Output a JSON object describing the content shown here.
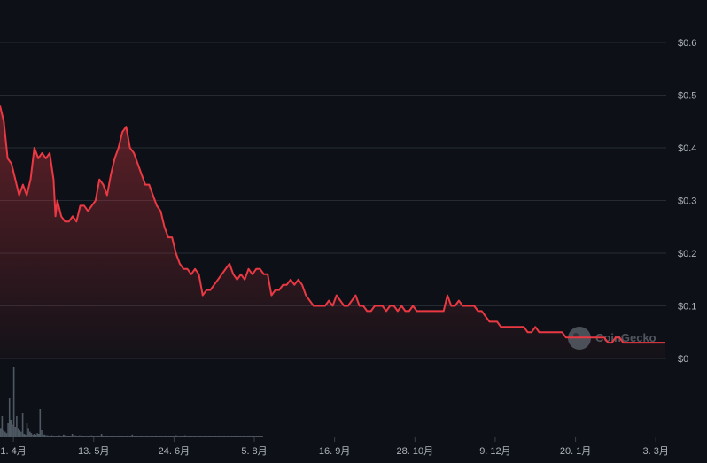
{
  "chart_data": {
    "type": "line",
    "title": "",
    "xlabel": "",
    "ylabel": "",
    "ylim": [
      0,
      0.6
    ],
    "grid": true,
    "y_ticks": [
      "$0",
      "$0.1",
      "$0.2",
      "$0.3",
      "$0.4",
      "$0.5",
      "$0.6"
    ],
    "y_tick_values": [
      0,
      0.1,
      0.2,
      0.3,
      0.4,
      0.5,
      0.6
    ],
    "x_ticks": [
      "1. 4月",
      "13. 5月",
      "24. 6月",
      "5. 8月",
      "16. 9月",
      "28. 10月",
      "9. 12月",
      "20. 1月",
      "3. 3月"
    ],
    "x_tick_day_index": [
      0,
      42,
      84,
      126,
      168,
      210,
      252,
      294,
      336
    ],
    "colors": {
      "line": "#ea3943",
      "volume": "#5a6570",
      "grid": "#262b33",
      "background": "#0d1117"
    },
    "watermark": "CoinGecko",
    "series": [
      {
        "points": [
          [
            -7,
            0.48
          ],
          [
            -5,
            0.45
          ],
          [
            -3,
            0.38
          ],
          [
            -1,
            0.37
          ],
          [
            1,
            0.34
          ],
          [
            3,
            0.31
          ],
          [
            5,
            0.33
          ],
          [
            7,
            0.31
          ],
          [
            9,
            0.34
          ],
          [
            11,
            0.4
          ],
          [
            13,
            0.38
          ],
          [
            15,
            0.39
          ],
          [
            17,
            0.38
          ],
          [
            19,
            0.39
          ],
          [
            21,
            0.34
          ],
          [
            22,
            0.27
          ],
          [
            23,
            0.3
          ],
          [
            25,
            0.27
          ],
          [
            27,
            0.26
          ],
          [
            29,
            0.26
          ],
          [
            31,
            0.27
          ],
          [
            33,
            0.26
          ],
          [
            35,
            0.29
          ],
          [
            37,
            0.29
          ],
          [
            39,
            0.28
          ],
          [
            41,
            0.29
          ],
          [
            43,
            0.3
          ],
          [
            45,
            0.34
          ],
          [
            47,
            0.33
          ],
          [
            49,
            0.31
          ],
          [
            51,
            0.35
          ],
          [
            53,
            0.38
          ],
          [
            55,
            0.4
          ],
          [
            57,
            0.43
          ],
          [
            59,
            0.44
          ],
          [
            61,
            0.4
          ],
          [
            63,
            0.39
          ],
          [
            65,
            0.37
          ],
          [
            67,
            0.35
          ],
          [
            69,
            0.33
          ],
          [
            71,
            0.33
          ],
          [
            73,
            0.31
          ],
          [
            75,
            0.29
          ],
          [
            77,
            0.28
          ],
          [
            79,
            0.25
          ],
          [
            81,
            0.23
          ],
          [
            83,
            0.23
          ],
          [
            85,
            0.2
          ],
          [
            87,
            0.18
          ],
          [
            89,
            0.17
          ],
          [
            91,
            0.17
          ],
          [
            93,
            0.16
          ],
          [
            95,
            0.17
          ],
          [
            97,
            0.16
          ],
          [
            99,
            0.12
          ],
          [
            101,
            0.13
          ],
          [
            103,
            0.13
          ],
          [
            105,
            0.14
          ],
          [
            107,
            0.15
          ],
          [
            109,
            0.16
          ],
          [
            111,
            0.17
          ],
          [
            113,
            0.18
          ],
          [
            115,
            0.16
          ],
          [
            117,
            0.15
          ],
          [
            119,
            0.16
          ],
          [
            121,
            0.15
          ],
          [
            123,
            0.17
          ],
          [
            125,
            0.16
          ],
          [
            127,
            0.17
          ],
          [
            129,
            0.17
          ],
          [
            131,
            0.16
          ],
          [
            133,
            0.16
          ],
          [
            135,
            0.12
          ],
          [
            137,
            0.13
          ],
          [
            139,
            0.13
          ],
          [
            141,
            0.14
          ],
          [
            143,
            0.14
          ],
          [
            145,
            0.15
          ],
          [
            147,
            0.14
          ],
          [
            149,
            0.15
          ],
          [
            151,
            0.14
          ],
          [
            153,
            0.12
          ],
          [
            155,
            0.11
          ],
          [
            157,
            0.1
          ],
          [
            159,
            0.1
          ],
          [
            161,
            0.1
          ],
          [
            163,
            0.1
          ],
          [
            165,
            0.11
          ],
          [
            167,
            0.1
          ],
          [
            169,
            0.12
          ],
          [
            171,
            0.11
          ],
          [
            173,
            0.1
          ],
          [
            175,
            0.1
          ],
          [
            177,
            0.11
          ],
          [
            179,
            0.12
          ],
          [
            181,
            0.1
          ],
          [
            183,
            0.1
          ],
          [
            185,
            0.09
          ],
          [
            187,
            0.09
          ],
          [
            189,
            0.1
          ],
          [
            191,
            0.1
          ],
          [
            193,
            0.1
          ],
          [
            195,
            0.09
          ],
          [
            197,
            0.1
          ],
          [
            199,
            0.1
          ],
          [
            201,
            0.09
          ],
          [
            203,
            0.1
          ],
          [
            205,
            0.09
          ],
          [
            207,
            0.09
          ],
          [
            209,
            0.1
          ],
          [
            211,
            0.09
          ],
          [
            213,
            0.09
          ],
          [
            215,
            0.09
          ],
          [
            217,
            0.09
          ],
          [
            219,
            0.09
          ],
          [
            221,
            0.09
          ],
          [
            223,
            0.09
          ],
          [
            225,
            0.09
          ],
          [
            227,
            0.12
          ],
          [
            229,
            0.1
          ],
          [
            231,
            0.1
          ],
          [
            233,
            0.11
          ],
          [
            235,
            0.1
          ],
          [
            237,
            0.1
          ],
          [
            239,
            0.1
          ],
          [
            241,
            0.1
          ],
          [
            243,
            0.09
          ],
          [
            245,
            0.09
          ],
          [
            247,
            0.08
          ],
          [
            249,
            0.07
          ],
          [
            251,
            0.07
          ],
          [
            253,
            0.07
          ],
          [
            255,
            0.06
          ],
          [
            257,
            0.06
          ],
          [
            259,
            0.06
          ],
          [
            261,
            0.06
          ],
          [
            263,
            0.06
          ],
          [
            265,
            0.06
          ],
          [
            267,
            0.06
          ],
          [
            269,
            0.05
          ],
          [
            271,
            0.05
          ],
          [
            273,
            0.06
          ],
          [
            275,
            0.05
          ],
          [
            277,
            0.05
          ],
          [
            279,
            0.05
          ],
          [
            281,
            0.05
          ],
          [
            283,
            0.05
          ],
          [
            285,
            0.05
          ],
          [
            287,
            0.05
          ],
          [
            289,
            0.04
          ],
          [
            291,
            0.04
          ],
          [
            293,
            0.04
          ],
          [
            295,
            0.04
          ],
          [
            297,
            0.04
          ],
          [
            299,
            0.04
          ],
          [
            301,
            0.04
          ],
          [
            303,
            0.04
          ],
          [
            305,
            0.04
          ],
          [
            307,
            0.04
          ],
          [
            309,
            0.04
          ],
          [
            311,
            0.03
          ],
          [
            313,
            0.03
          ],
          [
            315,
            0.04
          ],
          [
            317,
            0.04
          ],
          [
            319,
            0.03
          ],
          [
            321,
            0.03
          ],
          [
            323,
            0.03
          ],
          [
            325,
            0.03
          ],
          [
            327,
            0.03
          ],
          [
            329,
            0.03
          ],
          [
            331,
            0.03
          ],
          [
            333,
            0.03
          ],
          [
            335,
            0.03
          ],
          [
            337,
            0.03
          ],
          [
            339,
            0.03
          ],
          [
            341,
            0.03
          ]
        ]
      }
    ],
    "volume_relative": [
      0.12,
      0.3,
      0.1,
      0.08,
      0.06,
      0.2,
      0.55,
      0.25,
      0.18,
      1.0,
      0.15,
      0.3,
      0.12,
      0.1,
      0.08,
      0.35,
      0.05,
      0.04,
      0.2,
      0.12,
      0.08,
      0.06,
      0.04,
      0.05,
      0.04,
      0.06,
      0.05,
      0.4,
      0.1,
      0.04,
      0.04,
      0.03,
      0.03,
      0.02,
      0.02,
      0.03,
      0.02,
      0.02,
      0.02,
      0.02,
      0.03,
      0.02,
      0.02,
      0.04,
      0.03,
      0.02,
      0.02,
      0.02,
      0.02,
      0.05,
      0.02,
      0.03,
      0.02,
      0.02,
      0.03,
      0.02,
      0.02,
      0.02,
      0.02,
      0.02,
      0.02,
      0.02,
      0.03,
      0.02,
      0.02,
      0.02,
      0.02,
      0.02,
      0.02,
      0.05,
      0.02,
      0.02,
      0.02,
      0.02,
      0.02,
      0.02,
      0.02,
      0.02,
      0.02,
      0.02,
      0.02,
      0.02,
      0.02,
      0.02,
      0.02,
      0.02,
      0.02,
      0.02,
      0.02,
      0.02,
      0.04,
      0.02,
      0.02,
      0.02,
      0.02,
      0.02,
      0.02,
      0.02,
      0.02,
      0.02,
      0.02,
      0.02,
      0.02,
      0.02,
      0.02,
      0.02,
      0.02,
      0.02,
      0.02,
      0.02,
      0.02,
      0.02,
      0.02,
      0.02,
      0.02,
      0.02,
      0.02,
      0.02,
      0.02,
      0.02,
      0.03,
      0.02,
      0.02,
      0.02,
      0.02,
      0.02,
      0.03,
      0.02,
      0.02,
      0.02,
      0.02,
      0.02,
      0.02,
      0.02,
      0.02,
      0.02,
      0.02,
      0.02,
      0.02,
      0.02,
      0.02,
      0.02,
      0.02,
      0.02,
      0.02,
      0.02,
      0.02,
      0.02,
      0.02,
      0.02,
      0.02,
      0.02,
      0.02,
      0.02,
      0.02,
      0.02,
      0.02,
      0.02,
      0.02,
      0.02,
      0.02,
      0.02,
      0.02,
      0.02,
      0.02,
      0.02,
      0.02,
      0.02,
      0.02,
      0.02,
      0.02,
      0.02,
      0.02,
      0.02,
      0.02,
      0.02,
      0.02,
      0.02,
      0.02,
      0.02
    ]
  }
}
